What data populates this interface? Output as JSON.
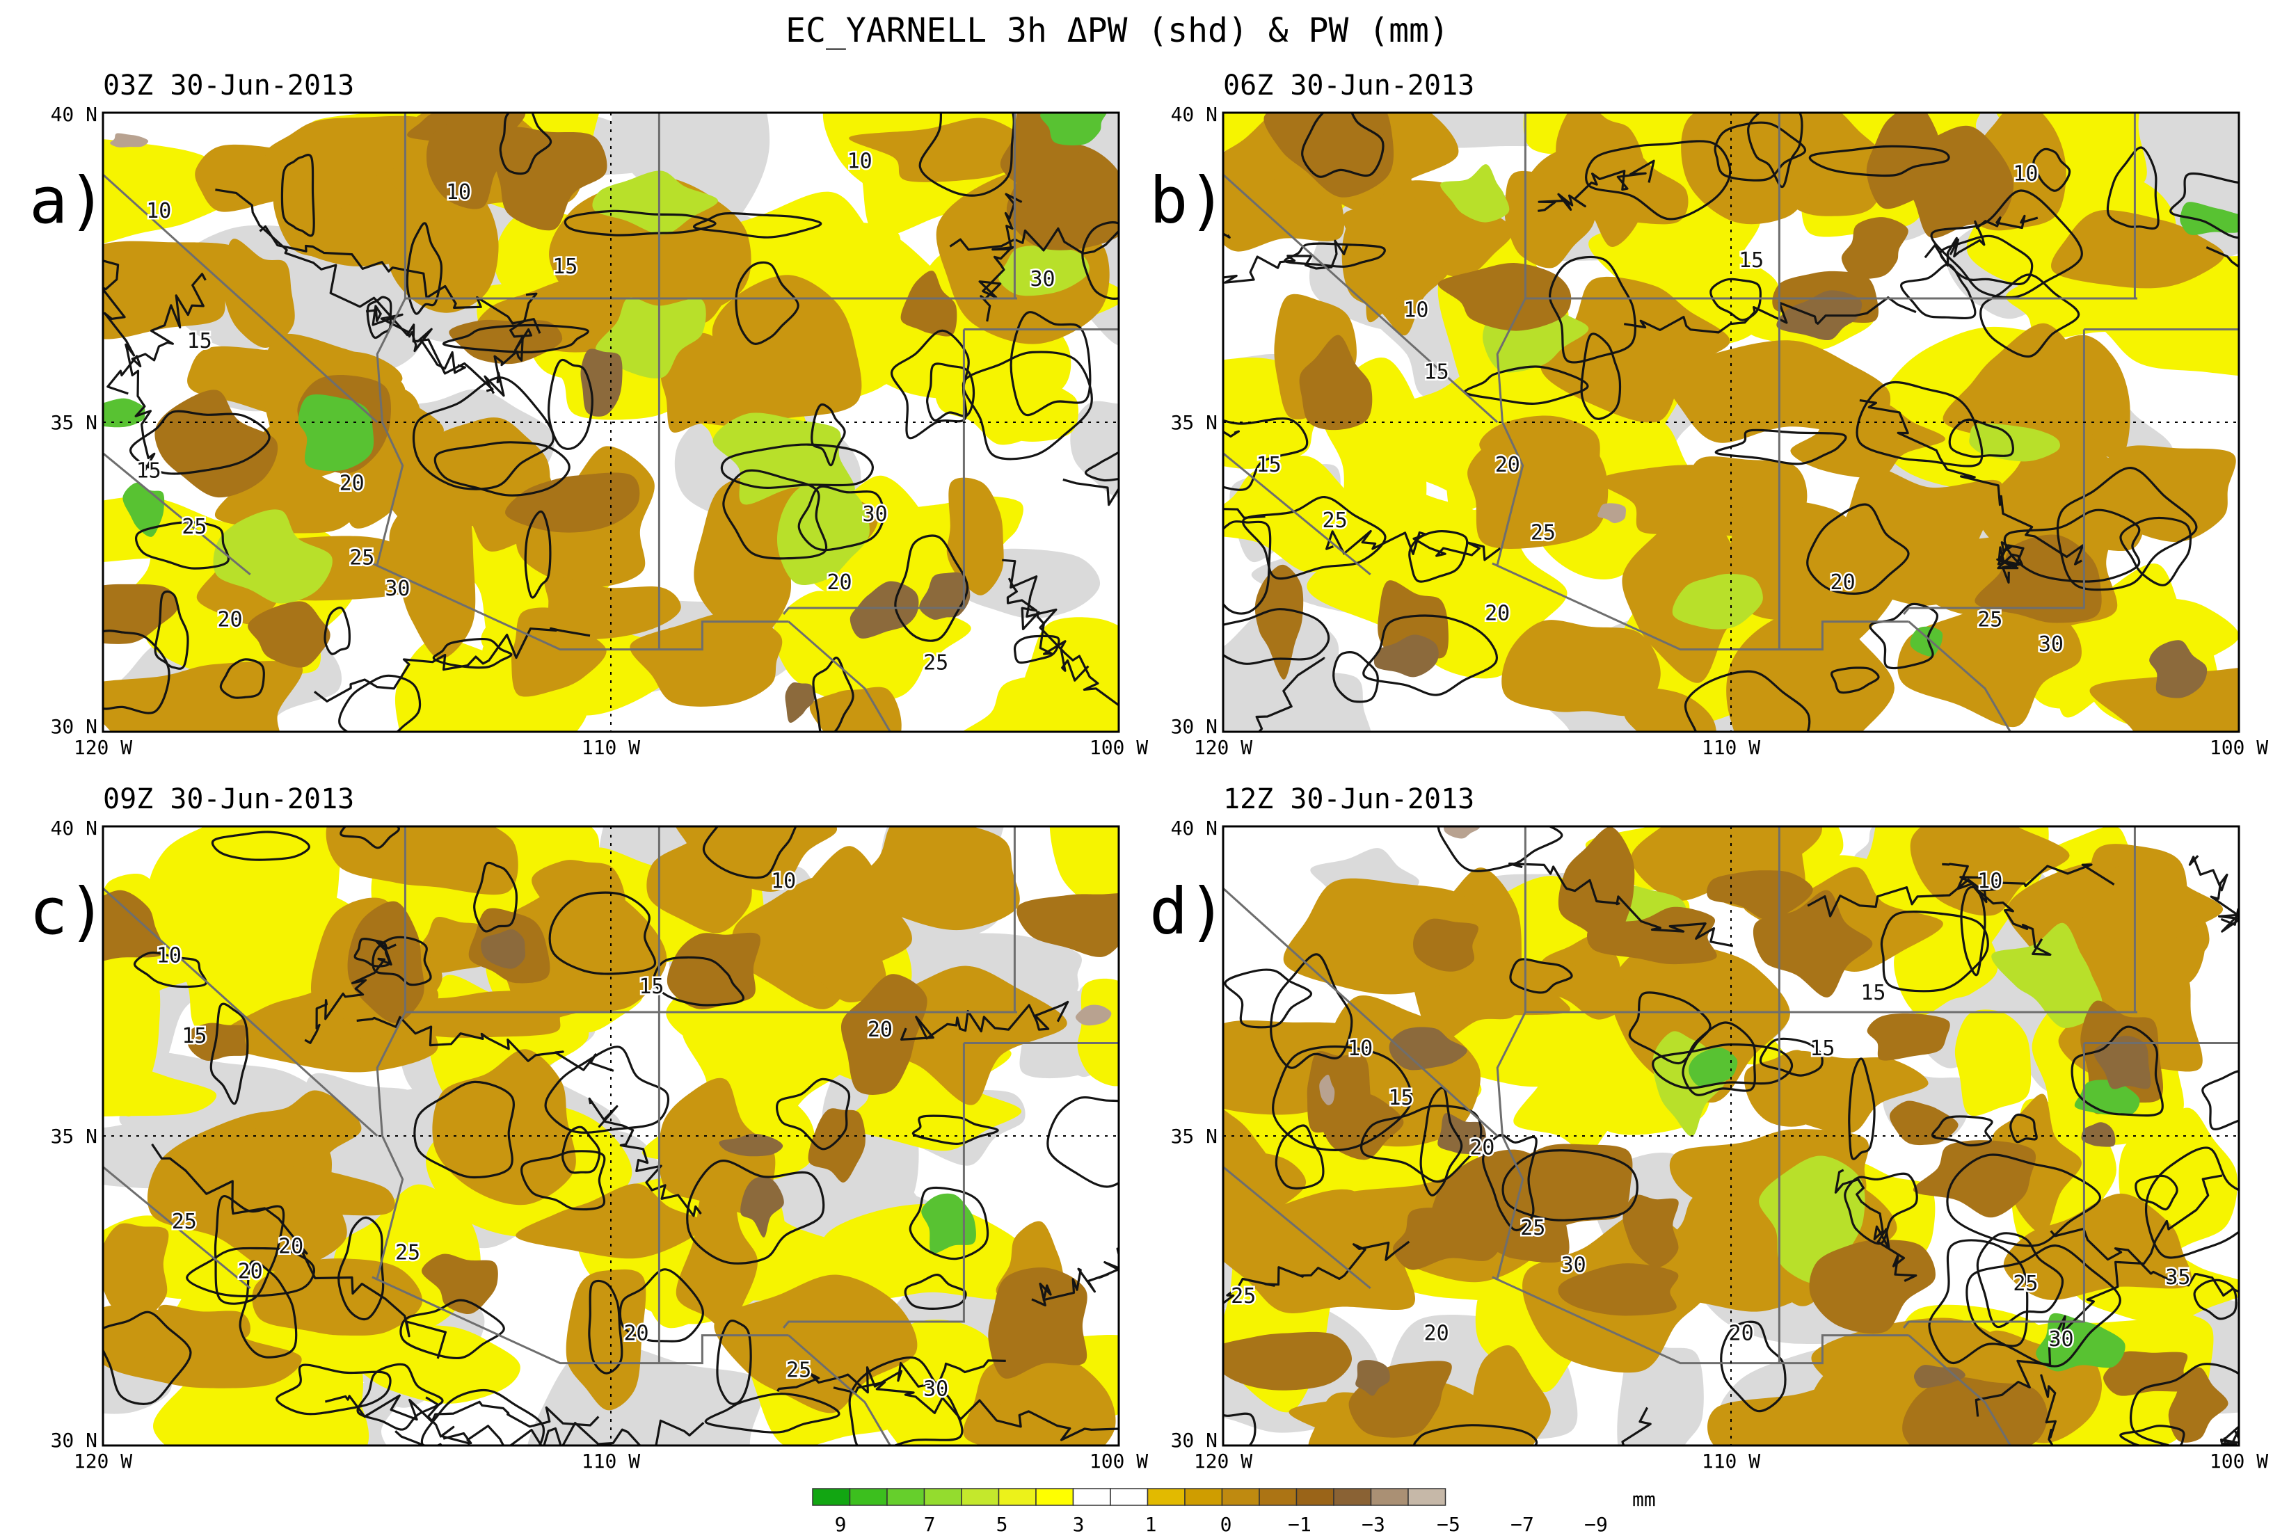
{
  "title": "EC_YARNELL 3h ΔPW (shd) & PW (mm)",
  "axes": {
    "lat_ticks": [
      "40 N",
      "35 N",
      "30 N"
    ],
    "lon_ticks": [
      "120 W",
      "110 W",
      "100 W"
    ],
    "lat_range": [
      30,
      40
    ],
    "lon_range": [
      -120,
      -100
    ]
  },
  "panels": [
    {
      "id": "a",
      "letter": "a)",
      "time": "03Z 30-Jun-2013",
      "contour_labels": [
        {
          "text": "10",
          "lon": -113.0,
          "lat": 38.7
        },
        {
          "text": "10",
          "lon": -105.1,
          "lat": 39.2
        },
        {
          "text": "10",
          "lon": -118.9,
          "lat": 38.4
        },
        {
          "text": "15",
          "lon": -118.1,
          "lat": 36.3
        },
        {
          "text": "15",
          "lon": -110.9,
          "lat": 37.5
        },
        {
          "text": "15",
          "lon": -119.1,
          "lat": 34.2
        },
        {
          "text": "20",
          "lon": -115.1,
          "lat": 34.0
        },
        {
          "text": "25",
          "lon": -118.2,
          "lat": 33.3
        },
        {
          "text": "25",
          "lon": -114.9,
          "lat": 32.8
        },
        {
          "text": "30",
          "lon": -114.2,
          "lat": 32.3
        },
        {
          "text": "20",
          "lon": -117.5,
          "lat": 31.8
        },
        {
          "text": "30",
          "lon": -101.5,
          "lat": 37.3
        },
        {
          "text": "30",
          "lon": -104.8,
          "lat": 33.5
        },
        {
          "text": "20",
          "lon": -105.5,
          "lat": 32.4
        },
        {
          "text": "25",
          "lon": -103.6,
          "lat": 31.1
        }
      ]
    },
    {
      "id": "b",
      "letter": "b)",
      "time": "06Z 30-Jun-2013",
      "contour_labels": [
        {
          "text": "10",
          "lon": -104.2,
          "lat": 39.0
        },
        {
          "text": "15",
          "lon": -109.6,
          "lat": 37.6
        },
        {
          "text": "10",
          "lon": -116.2,
          "lat": 36.8
        },
        {
          "text": "15",
          "lon": -115.8,
          "lat": 35.8
        },
        {
          "text": "20",
          "lon": -114.4,
          "lat": 34.3
        },
        {
          "text": "15",
          "lon": -119.1,
          "lat": 34.3
        },
        {
          "text": "25",
          "lon": -117.8,
          "lat": 33.4
        },
        {
          "text": "25",
          "lon": -113.7,
          "lat": 33.2
        },
        {
          "text": "20",
          "lon": -114.6,
          "lat": 31.9
        },
        {
          "text": "20",
          "lon": -107.8,
          "lat": 32.4
        },
        {
          "text": "25",
          "lon": -104.9,
          "lat": 31.8
        },
        {
          "text": "30",
          "lon": -103.7,
          "lat": 31.4
        }
      ]
    },
    {
      "id": "c",
      "letter": "c)",
      "time": "09Z 30-Jun-2013",
      "contour_labels": [
        {
          "text": "10",
          "lon": -118.7,
          "lat": 37.9
        },
        {
          "text": "15",
          "lon": -118.2,
          "lat": 36.6
        },
        {
          "text": "10",
          "lon": -106.6,
          "lat": 39.1
        },
        {
          "text": "15",
          "lon": -109.2,
          "lat": 37.4
        },
        {
          "text": "20",
          "lon": -104.7,
          "lat": 36.7
        },
        {
          "text": "25",
          "lon": -118.4,
          "lat": 33.6
        },
        {
          "text": "20",
          "lon": -117.1,
          "lat": 32.8
        },
        {
          "text": "20",
          "lon": -116.3,
          "lat": 33.2
        },
        {
          "text": "25",
          "lon": -114.0,
          "lat": 33.1
        },
        {
          "text": "20",
          "lon": -109.5,
          "lat": 31.8
        },
        {
          "text": "25",
          "lon": -106.3,
          "lat": 31.2
        },
        {
          "text": "30",
          "lon": -103.6,
          "lat": 30.9
        }
      ]
    },
    {
      "id": "d",
      "letter": "d)",
      "time": "12Z 30-Jun-2013",
      "contour_labels": [
        {
          "text": "10",
          "lon": -104.9,
          "lat": 39.1
        },
        {
          "text": "15",
          "lon": -107.2,
          "lat": 37.3
        },
        {
          "text": "15",
          "lon": -108.2,
          "lat": 36.4
        },
        {
          "text": "10",
          "lon": -117.3,
          "lat": 36.4
        },
        {
          "text": "15",
          "lon": -116.5,
          "lat": 35.6
        },
        {
          "text": "20",
          "lon": -114.9,
          "lat": 34.8
        },
        {
          "text": "25",
          "lon": -113.9,
          "lat": 33.5
        },
        {
          "text": "30",
          "lon": -113.1,
          "lat": 32.9
        },
        {
          "text": "25",
          "lon": -119.6,
          "lat": 32.4
        },
        {
          "text": "20",
          "lon": -115.8,
          "lat": 31.8
        },
        {
          "text": "20",
          "lon": -109.8,
          "lat": 31.8
        },
        {
          "text": "25",
          "lon": -104.2,
          "lat": 32.6
        },
        {
          "text": "30",
          "lon": -103.5,
          "lat": 31.7
        },
        {
          "text": "35",
          "lon": -101.2,
          "lat": 32.7
        }
      ]
    }
  ],
  "legend": {
    "unit": "mm",
    "tick_labels": [
      "9",
      "7",
      "5",
      "3",
      "1",
      "0",
      "−1",
      "−3",
      "−5",
      "−7",
      "−9"
    ],
    "colors": [
      "#12a612",
      "#3cbf1e",
      "#66cf2c",
      "#94dc2e",
      "#c4e82c",
      "#ecf21a",
      "#ffff00",
      "#ffffff",
      "#ffffff",
      "#e2ba00",
      "#cf9d00",
      "#bf8a10",
      "#ac7414",
      "#9a6418",
      "#8a6234",
      "#aa9074",
      "#c6b8a8"
    ]
  },
  "shading_colors": {
    "gray": "#dadada",
    "yellow": "#f6f400",
    "lightgreen": "#b8e02a",
    "green": "#58c232",
    "tan": "#c99610",
    "brown": "#a87418",
    "darkbrown": "#8c6a3c",
    "grayish": "#b8a290",
    "border": "#6e6e6e",
    "contour": "#141414"
  }
}
